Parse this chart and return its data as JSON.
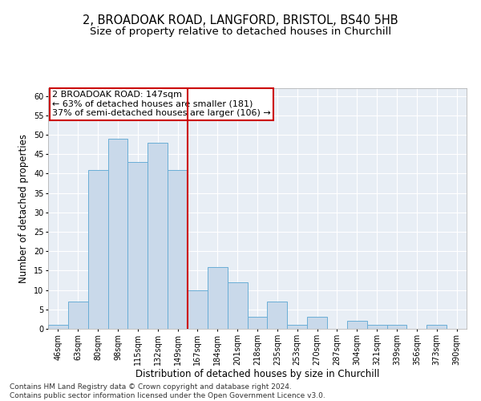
{
  "title_line1": "2, BROADOAK ROAD, LANGFORD, BRISTOL, BS40 5HB",
  "title_line2": "Size of property relative to detached houses in Churchill",
  "xlabel": "Distribution of detached houses by size in Churchill",
  "ylabel": "Number of detached properties",
  "categories": [
    "46sqm",
    "63sqm",
    "80sqm",
    "98sqm",
    "115sqm",
    "132sqm",
    "149sqm",
    "167sqm",
    "184sqm",
    "201sqm",
    "218sqm",
    "235sqm",
    "253sqm",
    "270sqm",
    "287sqm",
    "304sqm",
    "321sqm",
    "339sqm",
    "356sqm",
    "373sqm",
    "390sqm"
  ],
  "values": [
    1,
    7,
    41,
    49,
    43,
    48,
    41,
    10,
    16,
    12,
    3,
    7,
    1,
    3,
    0,
    2,
    1,
    1,
    0,
    1,
    0
  ],
  "bar_color": "#c9d9ea",
  "bar_edge_color": "#6aaed6",
  "property_line_x": 6.5,
  "property_label": "2 BROADOAK ROAD: 147sqm",
  "annotation_line1": "← 63% of detached houses are smaller (181)",
  "annotation_line2": "37% of semi-detached houses are larger (106) →",
  "annotation_box_color": "#ffffff",
  "annotation_box_edge_color": "#cc0000",
  "property_line_color": "#cc0000",
  "ylim": [
    0,
    62
  ],
  "yticks": [
    0,
    5,
    10,
    15,
    20,
    25,
    30,
    35,
    40,
    45,
    50,
    55,
    60
  ],
  "background_color": "#e8eef5",
  "footer_line1": "Contains HM Land Registry data © Crown copyright and database right 2024.",
  "footer_line2": "Contains public sector information licensed under the Open Government Licence v3.0.",
  "title_fontsize": 10.5,
  "subtitle_fontsize": 9.5,
  "axis_label_fontsize": 8.5,
  "tick_fontsize": 7,
  "annotation_fontsize": 8,
  "footer_fontsize": 6.5
}
